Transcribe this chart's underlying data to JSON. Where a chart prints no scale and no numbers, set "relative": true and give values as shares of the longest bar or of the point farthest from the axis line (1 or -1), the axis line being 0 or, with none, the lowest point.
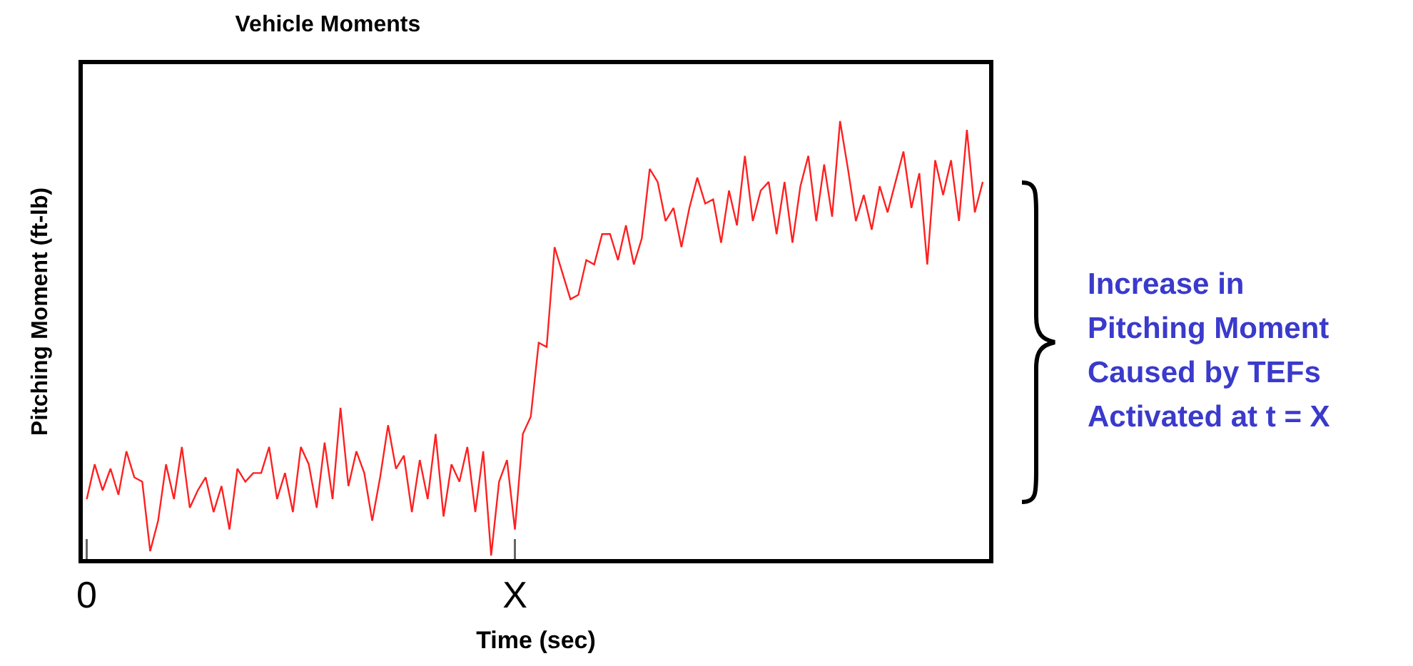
{
  "chart_data": {
    "type": "line",
    "title": "Vehicle Moments",
    "xlabel": "Time (sec)",
    "ylabel": "Pitching Moment (ft-lb)",
    "relative": true,
    "grid": false,
    "marker": "none",
    "line_style": "solid",
    "categories": [
      "0",
      null,
      null,
      null,
      null,
      null,
      null,
      null,
      null,
      null,
      null,
      null,
      null,
      null,
      null,
      null,
      null,
      null,
      null,
      null,
      null,
      null,
      null,
      null,
      null,
      null,
      null,
      null,
      null,
      null,
      null,
      null,
      null,
      null,
      null,
      null,
      null,
      null,
      null,
      null,
      null,
      null,
      null,
      null,
      null,
      null,
      null,
      null,
      null,
      null,
      null,
      null,
      null,
      null,
      "X",
      null,
      null,
      null,
      null,
      null,
      null,
      null,
      null,
      null,
      null,
      null,
      null,
      null,
      null,
      null,
      null,
      null,
      null,
      null,
      null,
      null,
      null,
      null,
      null,
      null,
      null,
      null,
      null,
      null,
      null,
      null,
      null,
      null,
      null,
      null,
      null,
      null,
      null,
      null,
      null,
      null,
      null,
      null,
      null,
      null,
      null,
      null,
      null,
      null,
      null,
      null,
      null,
      null,
      null,
      null,
      null,
      null,
      null,
      null
    ],
    "tick_labels": "x",
    "annotations": [
      "Increase in\nPitching Moment\nCaused by TEFs\nActivated at t = X"
    ],
    "series": [
      {
        "color": "#ff2020",
        "values": [
          0.13,
          0.21,
          0.15,
          0.2,
          0.14,
          0.24,
          0.18,
          0.17,
          0.01,
          0.08,
          0.21,
          0.13,
          0.25,
          0.11,
          0.15,
          0.18,
          0.1,
          0.16,
          0.06,
          0.2,
          0.17,
          0.19,
          0.19,
          0.25,
          0.13,
          0.19,
          0.1,
          0.25,
          0.21,
          0.11,
          0.26,
          0.13,
          0.34,
          0.16,
          0.24,
          0.19,
          0.08,
          0.18,
          0.3,
          0.2,
          0.23,
          0.1,
          0.22,
          0.13,
          0.28,
          0.09,
          0.21,
          0.17,
          0.25,
          0.1,
          0.24,
          0,
          0.17,
          0.22,
          0.06,
          0.28,
          0.32,
          0.49,
          0.48,
          0.71,
          0.65,
          0.59,
          0.6,
          0.68,
          0.67,
          0.74,
          0.74,
          0.68,
          0.76,
          0.67,
          0.73,
          0.89,
          0.86,
          0.77,
          0.8,
          0.71,
          0.8,
          0.87,
          0.81,
          0.82,
          0.72,
          0.84,
          0.76,
          0.92,
          0.77,
          0.84,
          0.86,
          0.74,
          0.86,
          0.72,
          0.85,
          0.92,
          0.77,
          0.9,
          0.78,
          1,
          0.89,
          0.77,
          0.83,
          0.75,
          0.85,
          0.79,
          0.86,
          0.93,
          0.8,
          0.88,
          0.67,
          0.91,
          0.83,
          0.91,
          0.77,
          0.98,
          0.79,
          0.86
        ]
      }
    ]
  }
}
